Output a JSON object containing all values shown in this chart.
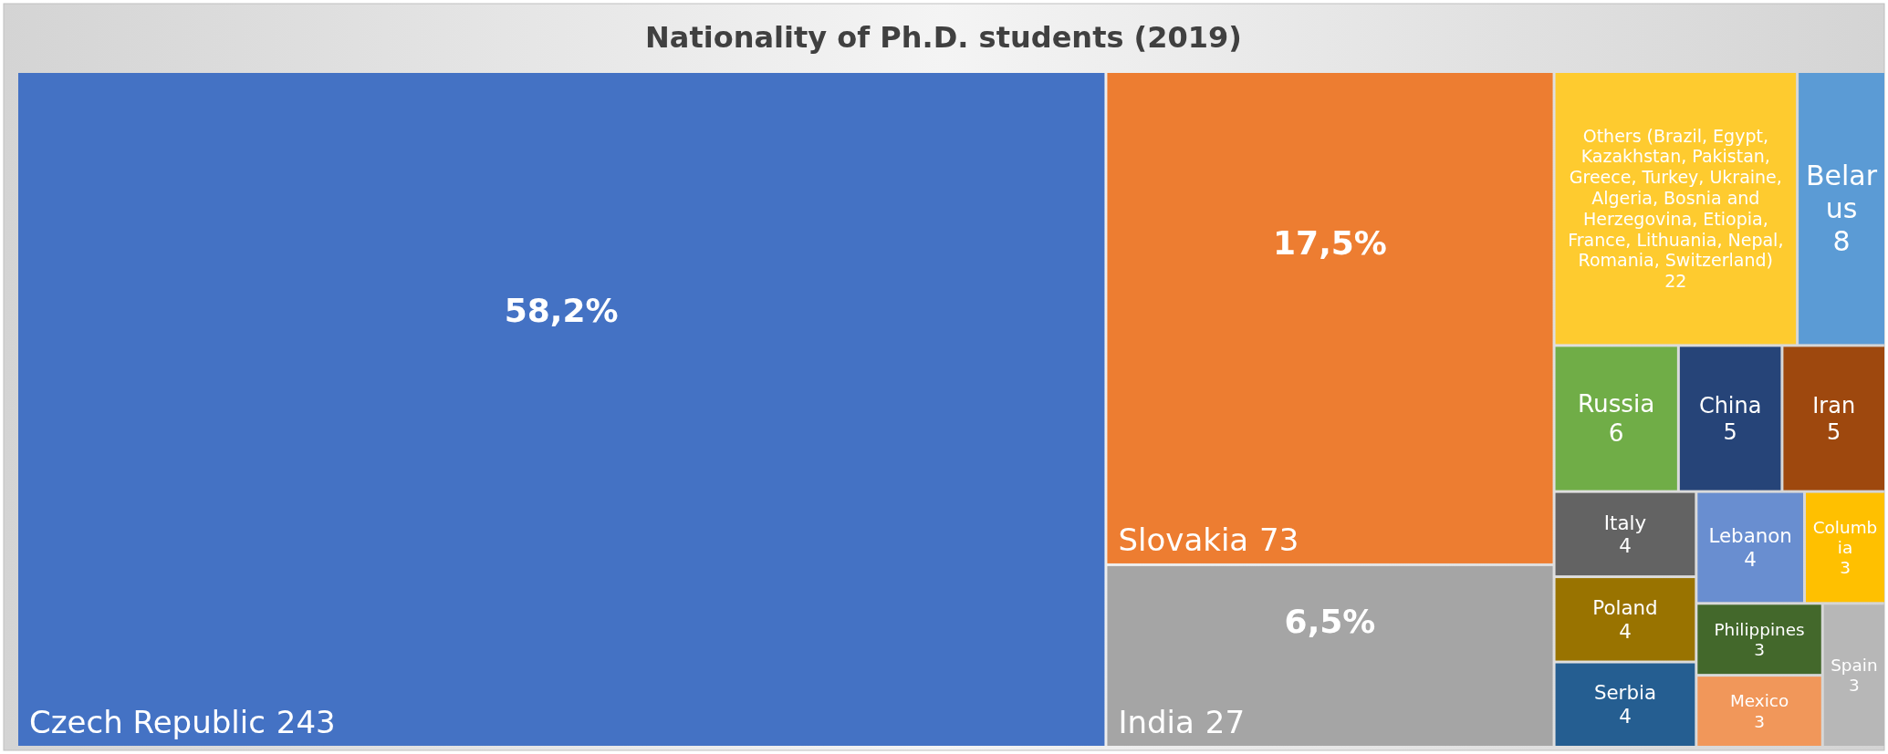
{
  "chart_data": {
    "type": "other",
    "title": "Nationality of Ph.D. students (2019)",
    "categories": [
      "Czech Republic",
      "Slovakia",
      "India",
      "Others (Brazil, Egypt, Kazakhstan, Pakistan, Greece, Turkey, Ukraine, Algeria, Bosnia and Herzegovina, Etiopia, France, Lithuania, Nepal, Romania, Switzerland)",
      "Belarus",
      "Russia",
      "China",
      "Iran",
      "Italy",
      "Poland",
      "Serbia",
      "Lebanon",
      "Columbia",
      "Philippines",
      "Mexico",
      "Spain"
    ],
    "values": [
      243,
      73,
      27,
      22,
      8,
      6,
      5,
      5,
      4,
      4,
      4,
      4,
      3,
      3,
      3,
      3
    ],
    "data_labels": true,
    "annotations": [
      {
        "text": "58,2%",
        "x": "Czech Republic"
      },
      {
        "text": "17,5%",
        "x": "Slovakia"
      },
      {
        "text": "6,5%",
        "x": "India"
      }
    ],
    "colors": [
      "#4472c4",
      "#ed7d31",
      "#a5a5a5",
      "#fecb2f",
      "#5b9bd5",
      "#70ad47",
      "#264478",
      "#9e480e",
      "#636363",
      "#997300",
      "#255e91",
      "#698ed0",
      "#ffc000",
      "#43682b",
      "#f1975a",
      "#b7b7b7"
    ]
  }
}
